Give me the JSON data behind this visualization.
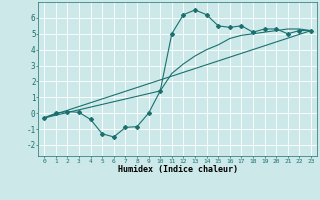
{
  "xlabel": "Humidex (Indice chaleur)",
  "bg_color": "#cce8e8",
  "line_color": "#1a7070",
  "grid_color": "#ffffff",
  "xlim": [
    -0.5,
    23.5
  ],
  "ylim": [
    -2.7,
    7.0
  ],
  "xticks": [
    0,
    1,
    2,
    3,
    4,
    5,
    6,
    7,
    8,
    9,
    10,
    11,
    12,
    13,
    14,
    15,
    16,
    17,
    18,
    19,
    20,
    21,
    22,
    23
  ],
  "yticks": [
    -2,
    -1,
    0,
    1,
    2,
    3,
    4,
    5,
    6
  ],
  "line1_x": [
    0,
    1,
    2,
    3,
    4,
    5,
    6,
    7,
    8,
    9,
    10,
    11,
    12,
    13,
    14,
    15,
    16,
    17,
    18,
    19,
    20,
    21,
    22,
    23
  ],
  "line1_y": [
    -0.3,
    0.0,
    0.1,
    0.05,
    -0.4,
    -1.3,
    -1.5,
    -0.9,
    -0.85,
    0.0,
    1.4,
    5.0,
    6.2,
    6.5,
    6.2,
    5.5,
    5.4,
    5.5,
    5.1,
    5.3,
    5.3,
    5.0,
    5.2,
    5.2
  ],
  "line2_x": [
    0,
    23
  ],
  "line2_y": [
    -0.3,
    5.2
  ],
  "line3_x": [
    0,
    10,
    11,
    12,
    13,
    14,
    15,
    16,
    17,
    18,
    19,
    20,
    21,
    22,
    23
  ],
  "line3_y": [
    -0.3,
    1.4,
    2.5,
    3.1,
    3.6,
    4.0,
    4.3,
    4.7,
    4.9,
    5.0,
    5.1,
    5.2,
    5.3,
    5.3,
    5.2
  ]
}
